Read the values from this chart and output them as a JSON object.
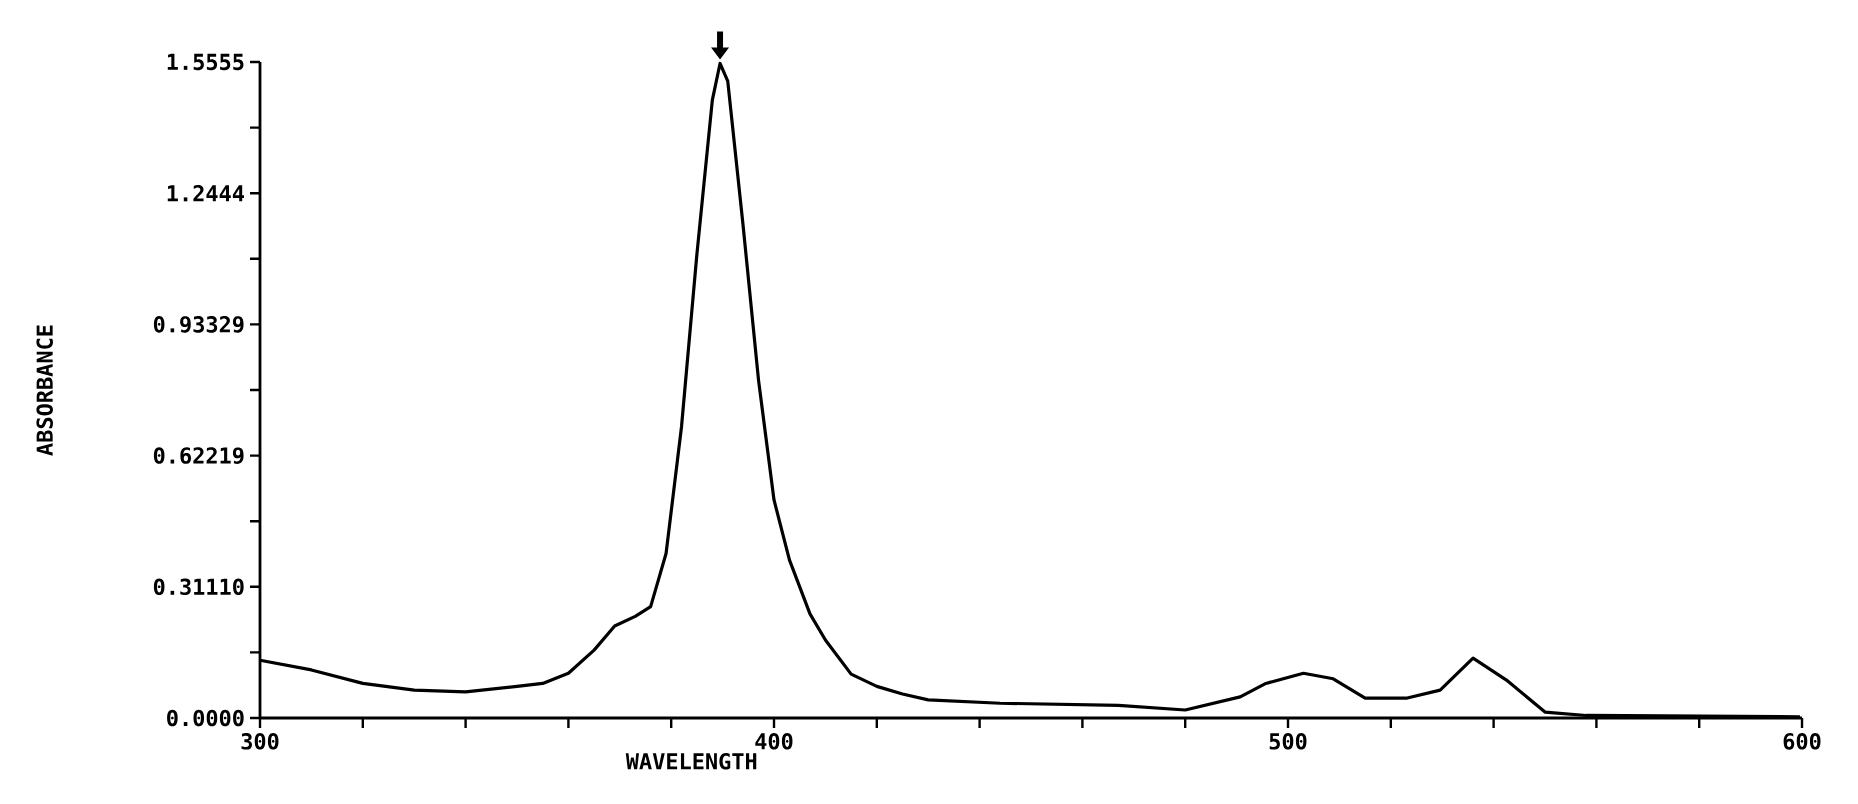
{
  "chart_data": {
    "type": "line",
    "xlabel": "WAVELENGTH",
    "ylabel": "ABSORBANCE",
    "series": [
      {
        "color": "#000000",
        "x": [
          300,
          310,
          320,
          330,
          340,
          350,
          355,
          360,
          365,
          369,
          373,
          376,
          379,
          382,
          385,
          388,
          389.5,
          391,
          394,
          397,
          400,
          403,
          407,
          410,
          415,
          420,
          425,
          430,
          444,
          467,
          480,
          490.7,
          495.7,
          503,
          508.8,
          515,
          523,
          529.6,
          536,
          542.5,
          550,
          558,
          599.6
        ],
        "values": [
          0.137,
          0.114,
          0.082,
          0.066,
          0.062,
          0.075,
          0.082,
          0.106,
          0.161,
          0.218,
          0.241,
          0.264,
          0.39,
          0.69,
          1.1,
          1.465,
          1.552,
          1.51,
          1.166,
          0.8,
          0.517,
          0.375,
          0.247,
          0.185,
          0.104,
          0.075,
          0.057,
          0.043,
          0.035,
          0.03,
          0.019,
          0.05,
          0.082,
          0.106,
          0.093,
          0.047,
          0.047,
          0.066,
          0.142,
          0.09,
          0.014,
          0.006,
          0.003
        ]
      }
    ],
    "xlim": [
      300,
      600
    ],
    "xticks": [
      300,
      {
        "value": 320,
        "label": null
      },
      {
        "value": 340,
        "label": null
      },
      {
        "value": 360,
        "label": null
      },
      {
        "value": 380,
        "label": null
      },
      400,
      {
        "value": 420,
        "label": null
      },
      {
        "value": 440,
        "label": null
      },
      {
        "value": 460,
        "label": null
      },
      {
        "value": 480,
        "label": null
      },
      500,
      {
        "value": 520,
        "label": null
      },
      {
        "value": 540,
        "label": null
      },
      {
        "value": 560,
        "label": null
      },
      {
        "value": 580,
        "label": null
      },
      600
    ],
    "ylim": [
      0,
      1.5555
    ],
    "yticks": [
      {
        "value": 0,
        "label": "0.0000"
      },
      {
        "value": 0.15555,
        "label": null
      },
      {
        "value": 0.3111,
        "label": "0.31110"
      },
      {
        "value": 0.46664,
        "label": null
      },
      {
        "value": 0.62219,
        "label": "0.62219"
      },
      {
        "value": 0.77774,
        "label": null
      },
      {
        "value": 0.93329,
        "label": "0.93329"
      },
      {
        "value": 1.0888,
        "label": null
      },
      {
        "value": 1.2444,
        "label": "1.2444"
      },
      {
        "value": 1.3999,
        "label": null
      },
      {
        "value": 1.5555,
        "label": "1.5555"
      }
    ]
  }
}
